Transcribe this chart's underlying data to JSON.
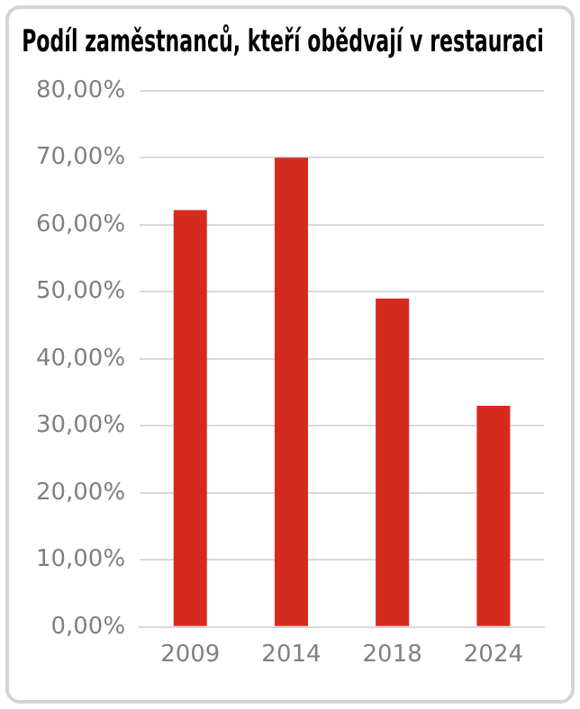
{
  "chart_data": {
    "type": "bar",
    "title": "Podíl zaměstnanců, kteří obědvají v restauraci",
    "categories": [
      "2009",
      "2014",
      "2018",
      "2024"
    ],
    "values": [
      62.2,
      70,
      49,
      33
    ],
    "color": "#d52b1e",
    "ylim": [
      0,
      80
    ],
    "yticks": [
      {
        "value": 0,
        "label": "0,00%"
      },
      {
        "value": 10,
        "label": "10,00%"
      },
      {
        "value": 20,
        "label": "20,00%"
      },
      {
        "value": 30,
        "label": "30,00%"
      },
      {
        "value": 40,
        "label": "40,00%"
      },
      {
        "value": 50,
        "label": "50,00%"
      },
      {
        "value": 60,
        "label": "60,00%"
      },
      {
        "value": 70,
        "label": "70,00%"
      },
      {
        "value": 80,
        "label": "80,00%"
      }
    ],
    "grid": "y",
    "legend": false
  }
}
